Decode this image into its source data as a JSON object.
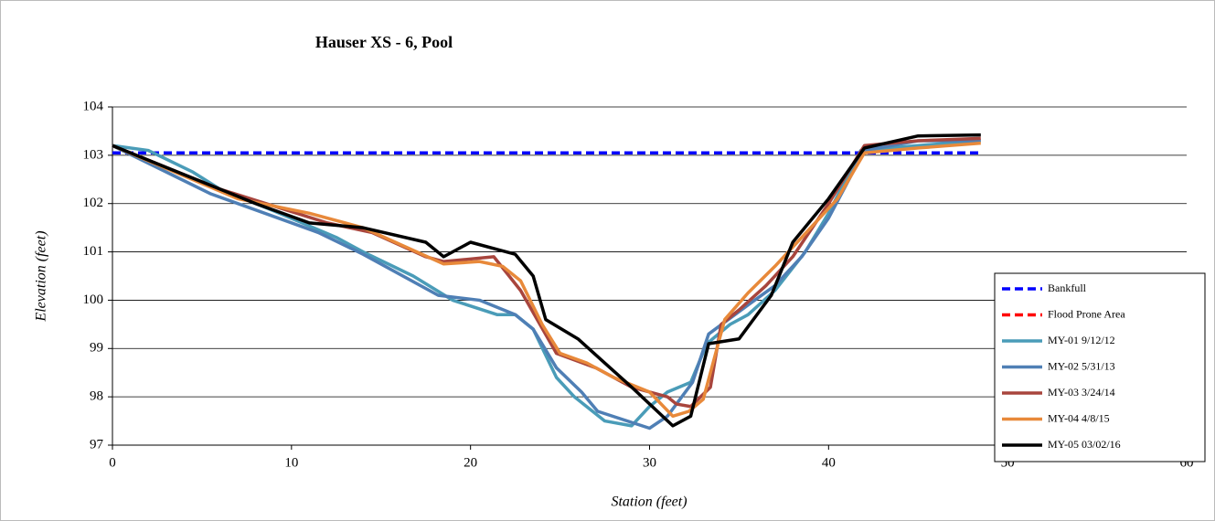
{
  "chart_data": {
    "type": "line",
    "title": "Hauser XS - 6, Pool",
    "xlabel": "Station (feet)",
    "ylabel": "Elevation (feet)",
    "xlim": [
      0,
      60
    ],
    "xticks": [
      0,
      10,
      20,
      30,
      40,
      50,
      60
    ],
    "ylim": [
      97,
      104
    ],
    "yticks": [
      97,
      98,
      99,
      100,
      101,
      102,
      103,
      104
    ],
    "grid": true,
    "legend": "lower right",
    "series": [
      {
        "name": "Bankfull",
        "color": "#0000ff",
        "dashed": true,
        "x": [
          0,
          48.5
        ],
        "values": [
          103.05,
          103.05
        ]
      },
      {
        "name": "Flood Prone Area",
        "color": "#ff0000",
        "dashed": true,
        "x": [],
        "values": []
      },
      {
        "name": "MY-01 9/12/12",
        "color": "#4a9cb8",
        "dashed": false,
        "x": [
          0,
          2,
          4.5,
          6,
          9,
          12.5,
          14,
          16.8,
          19,
          21.5,
          22.5,
          23.5,
          24.8,
          25.8,
          27.5,
          29,
          30,
          31,
          32.3,
          33.2,
          34.5,
          35.5,
          37,
          38.7,
          40,
          41.8,
          45,
          48.5
        ],
        "values": [
          103.2,
          103.1,
          102.65,
          102.3,
          101.85,
          101.3,
          101,
          100.5,
          100,
          99.7,
          99.7,
          99.4,
          98.4,
          98,
          97.5,
          97.4,
          97.8,
          98.1,
          98.3,
          99.1,
          99.5,
          99.7,
          100.2,
          101,
          101.8,
          103.1,
          103.2,
          103.3
        ]
      },
      {
        "name": "MY-02 5/31/13",
        "color": "#4f7fb5",
        "dashed": false,
        "x": [
          0,
          5.5,
          11.5,
          14,
          18.2,
          20.5,
          22.5,
          23.5,
          24.8,
          26.2,
          27.1,
          30,
          31,
          32.4,
          33.3,
          35.5,
          37,
          38.5,
          40,
          42,
          45,
          48.5
        ],
        "values": [
          103.2,
          102.2,
          101.4,
          100.95,
          100.1,
          100,
          99.7,
          99.4,
          98.6,
          98.1,
          97.7,
          97.35,
          97.6,
          98.3,
          99.3,
          99.9,
          100.3,
          100.9,
          101.7,
          103.1,
          103.3,
          103.3
        ]
      },
      {
        "name": "MY-03 3/24/14",
        "color": "#a8453d",
        "dashed": false,
        "x": [
          0,
          6,
          12,
          14.5,
          17.5,
          18.5,
          21.3,
          22.8,
          24.8,
          27,
          29,
          31,
          31.5,
          32.3,
          33.4,
          34,
          35,
          36.5,
          38,
          40,
          42,
          45,
          48.5
        ],
        "values": [
          103.2,
          102.3,
          101.6,
          101.4,
          100.9,
          100.8,
          100.9,
          100.2,
          98.9,
          98.6,
          98.2,
          98,
          97.85,
          97.8,
          98.2,
          99.5,
          99.8,
          100.3,
          100.9,
          102,
          103.2,
          103.3,
          103.35
        ]
      },
      {
        "name": "MY-04 4/8/15",
        "color": "#e8893a",
        "dashed": false,
        "x": [
          0,
          7,
          11,
          14,
          18.5,
          20.5,
          21.8,
          22.8,
          24,
          25,
          26.5,
          28,
          30,
          31.3,
          32.2,
          33,
          34.2,
          35.5,
          37,
          40.5,
          42,
          45,
          48.5
        ],
        "values": [
          103.2,
          102.1,
          101.8,
          101.5,
          100.75,
          100.8,
          100.7,
          100.4,
          99.5,
          98.9,
          98.7,
          98.4,
          98.1,
          97.6,
          97.7,
          97.95,
          99.6,
          100.15,
          100.7,
          102.1,
          103.05,
          103.15,
          103.25
        ]
      },
      {
        "name": "MY-05 03/02/16",
        "color": "#000000",
        "dashed": false,
        "x": [
          0,
          3,
          6,
          8,
          11,
          14,
          17.5,
          18.5,
          20,
          21.5,
          22.5,
          23.5,
          24.2,
          26,
          27.5,
          29,
          31.3,
          32.3,
          33.3,
          35,
          36.8,
          38,
          40,
          42,
          45,
          48.5
        ],
        "values": [
          103.2,
          102.75,
          102.3,
          102,
          101.6,
          101.5,
          101.2,
          100.9,
          101.2,
          101.05,
          100.95,
          100.5,
          99.6,
          99.2,
          98.7,
          98.2,
          97.4,
          97.6,
          99.1,
          99.2,
          100.1,
          101.2,
          102.1,
          103.15,
          103.4,
          103.42
        ]
      }
    ]
  }
}
